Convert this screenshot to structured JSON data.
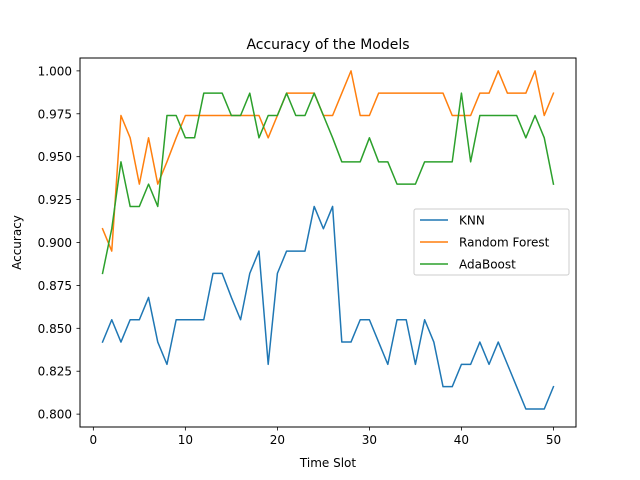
{
  "chart_data": {
    "type": "line",
    "title": "Accuracy of the Models",
    "xlabel": "Time Slot",
    "ylabel": "Accuracy",
    "xlim": [
      -1.45,
      52.45
    ],
    "ylim": [
      0.7925,
      1.0075
    ],
    "x_ticks": [
      0,
      10,
      20,
      30,
      40,
      50
    ],
    "x_tick_labels": [
      "0",
      "10",
      "20",
      "30",
      "40",
      "50"
    ],
    "y_ticks": [
      0.8,
      0.825,
      0.85,
      0.875,
      0.9,
      0.925,
      0.95,
      0.975,
      1.0
    ],
    "y_tick_labels": [
      "0.800",
      "0.825",
      "0.850",
      "0.875",
      "0.900",
      "0.925",
      "0.950",
      "0.975",
      "1.000"
    ],
    "grid": false,
    "legend_position": "center-right",
    "x": [
      1,
      2,
      3,
      4,
      5,
      6,
      7,
      8,
      9,
      10,
      11,
      12,
      13,
      14,
      15,
      16,
      17,
      18,
      19,
      20,
      21,
      22,
      23,
      24,
      25,
      26,
      27,
      28,
      29,
      30,
      31,
      32,
      33,
      34,
      35,
      36,
      37,
      38,
      39,
      40,
      41,
      42,
      43,
      44,
      45,
      46,
      47,
      48,
      49,
      50
    ],
    "series": [
      {
        "name": "KNN",
        "color": "#1f77b4",
        "values": [
          0.842,
          0.855,
          0.842,
          0.855,
          0.855,
          0.868,
          0.842,
          0.829,
          0.855,
          0.855,
          0.855,
          0.855,
          0.882,
          0.882,
          0.868,
          0.855,
          0.882,
          0.895,
          0.829,
          0.882,
          0.895,
          0.895,
          0.895,
          0.921,
          0.908,
          0.921,
          0.842,
          0.842,
          0.855,
          0.855,
          0.842,
          0.829,
          0.855,
          0.855,
          0.829,
          0.855,
          0.842,
          0.816,
          0.816,
          0.829,
          0.829,
          0.842,
          0.829,
          0.842,
          0.829,
          0.816,
          0.803,
          0.803,
          0.803,
          0.816
        ]
      },
      {
        "name": "Random Forest",
        "color": "#ff7f0e",
        "values": [
          0.908,
          0.895,
          0.974,
          0.961,
          0.934,
          0.961,
          0.934,
          0.947,
          0.961,
          0.974,
          0.974,
          0.974,
          0.974,
          0.974,
          0.974,
          0.974,
          0.974,
          0.974,
          0.961,
          0.974,
          0.987,
          0.987,
          0.987,
          0.987,
          0.974,
          0.974,
          0.987,
          1.0,
          0.974,
          0.974,
          0.987,
          0.987,
          0.987,
          0.987,
          0.987,
          0.987,
          0.987,
          0.987,
          0.974,
          0.974,
          0.974,
          0.987,
          0.987,
          1.0,
          0.987,
          0.987,
          0.987,
          1.0,
          0.974,
          0.987
        ]
      },
      {
        "name": "AdaBoost",
        "color": "#2ca02c",
        "values": [
          0.882,
          0.908,
          0.947,
          0.921,
          0.921,
          0.934,
          0.921,
          0.974,
          0.974,
          0.961,
          0.961,
          0.987,
          0.987,
          0.987,
          0.974,
          0.974,
          0.987,
          0.961,
          0.974,
          0.974,
          0.987,
          0.974,
          0.974,
          0.987,
          0.974,
          0.961,
          0.947,
          0.947,
          0.947,
          0.961,
          0.947,
          0.947,
          0.934,
          0.934,
          0.934,
          0.947,
          0.947,
          0.947,
          0.947,
          0.987,
          0.947,
          0.974,
          0.974,
          0.974,
          0.974,
          0.974,
          0.961,
          0.974,
          0.961,
          0.934
        ]
      }
    ]
  }
}
